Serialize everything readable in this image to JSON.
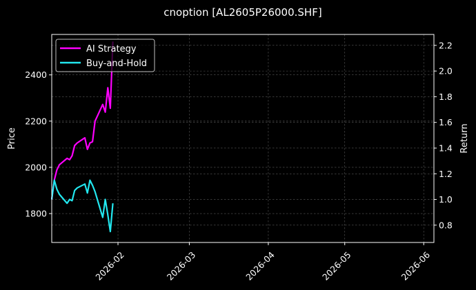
{
  "chart_data": {
    "type": "line",
    "title": "cnoption [AL2605P26000.SHF]",
    "ylabel_left": "Price",
    "ylabel_right": "Return",
    "xlim": [
      "2026-01-06",
      "2026-06-05"
    ],
    "ylim_left": [
      1675,
      2575
    ],
    "ylim_right": [
      0.665,
      2.285
    ],
    "x_ticks": [
      "2026-02",
      "2026-03",
      "2026-04",
      "2026-05",
      "2026-06"
    ],
    "y_ticks_left": [
      1800,
      2000,
      2200,
      2400
    ],
    "y_ticks_right": [
      0.8,
      1.0,
      1.2,
      1.4,
      1.6,
      1.8,
      2.0,
      2.2
    ],
    "grid": true,
    "legend_position": "top-left",
    "series": [
      {
        "name": "AI Strategy",
        "color": "#ff00ff",
        "axis": "right",
        "x": [
          "2026-01-06",
          "2026-01-07",
          "2026-01-08",
          "2026-01-09",
          "2026-01-12",
          "2026-01-13",
          "2026-01-14",
          "2026-01-15",
          "2026-01-16",
          "2026-01-19",
          "2026-01-20",
          "2026-01-21",
          "2026-01-22",
          "2026-01-23",
          "2026-01-26",
          "2026-01-27",
          "2026-01-28",
          "2026-01-29",
          "2026-01-30"
        ],
        "values": [
          1.0,
          1.15,
          1.23,
          1.27,
          1.32,
          1.31,
          1.34,
          1.42,
          1.44,
          1.48,
          1.39,
          1.44,
          1.45,
          1.61,
          1.74,
          1.68,
          1.87,
          1.71,
          2.23
        ]
      },
      {
        "name": "Buy-and-Hold",
        "color": "#22e8f0",
        "axis": "right",
        "x": [
          "2026-01-06",
          "2026-01-07",
          "2026-01-08",
          "2026-01-09",
          "2026-01-12",
          "2026-01-13",
          "2026-01-14",
          "2026-01-15",
          "2026-01-16",
          "2026-01-19",
          "2026-01-20",
          "2026-01-21",
          "2026-01-22",
          "2026-01-23",
          "2026-01-26",
          "2026-01-27",
          "2026-01-28",
          "2026-01-29",
          "2026-01-30"
        ],
        "values": [
          1.0,
          1.15,
          1.08,
          1.04,
          0.97,
          1.0,
          0.99,
          1.07,
          1.09,
          1.12,
          1.05,
          1.15,
          1.11,
          1.06,
          0.86,
          1.0,
          0.88,
          0.75,
          0.97
        ]
      }
    ]
  }
}
